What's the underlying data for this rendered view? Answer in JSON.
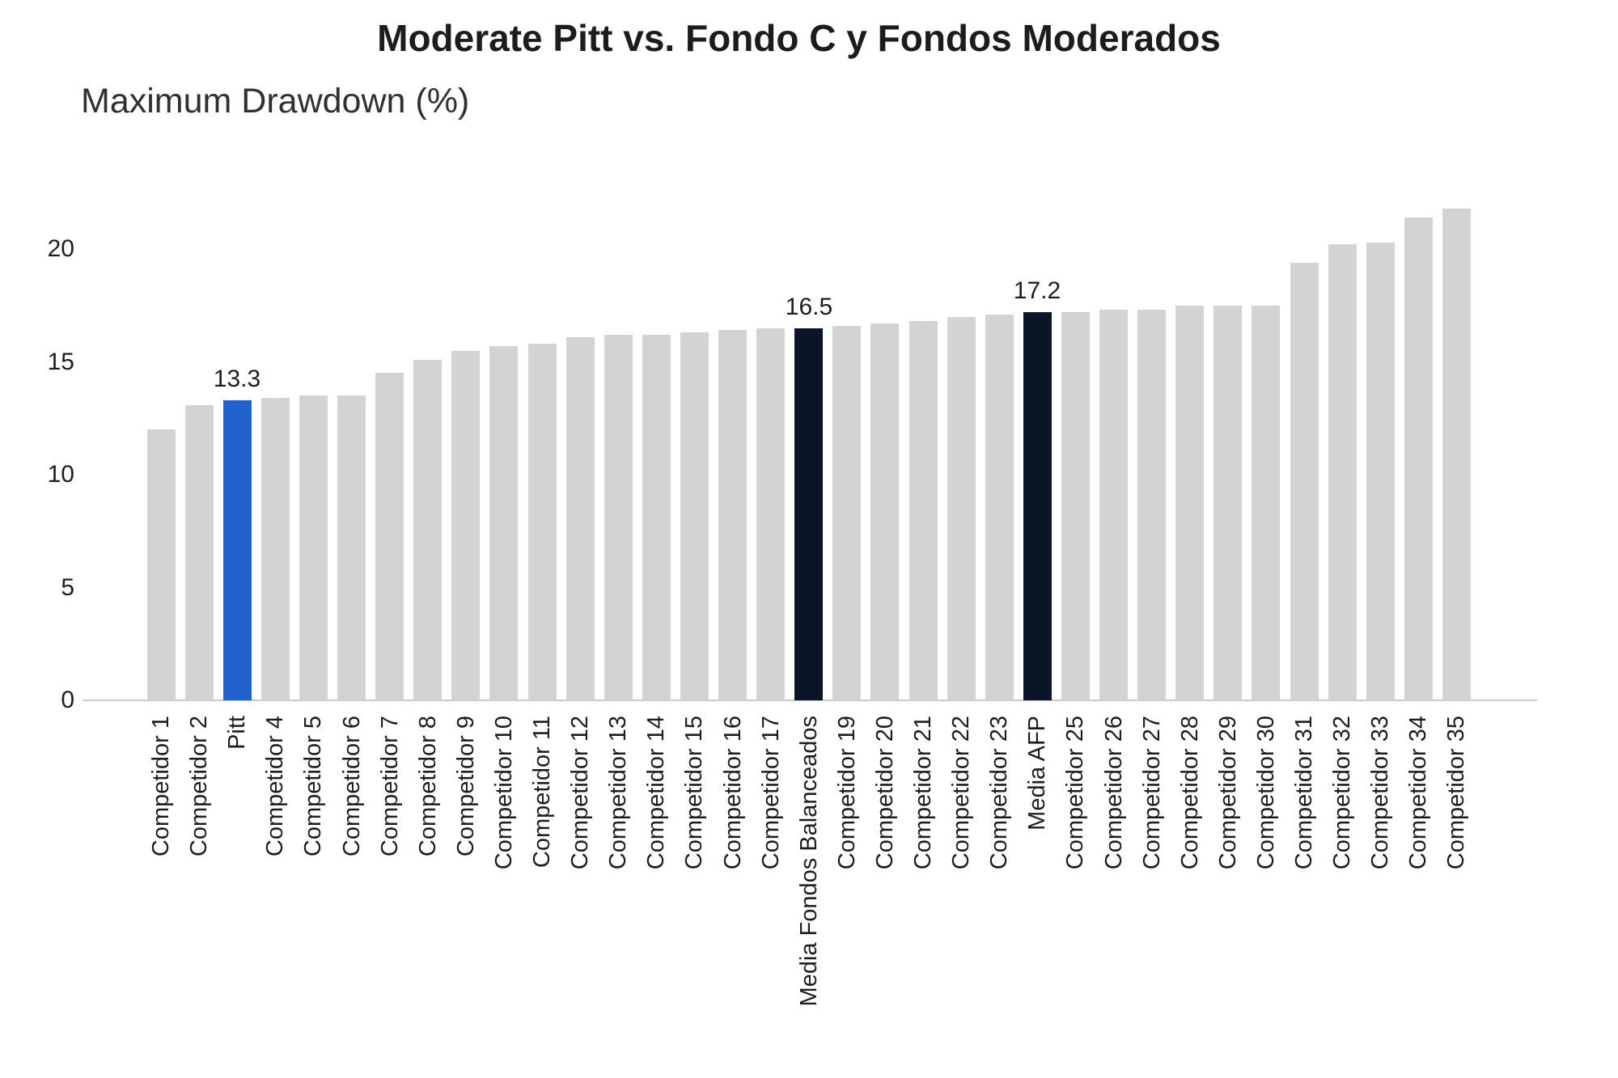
{
  "header": {
    "title": "Moderate Pitt vs. Fondo C y Fondos Moderados",
    "subtitle": "Maximum Drawdown (%)"
  },
  "chart_data": {
    "type": "bar",
    "title": "Moderate Pitt vs. Fondo C y Fondos Moderados",
    "ylabel": "Maximum Drawdown (%)",
    "xlabel": "",
    "categories": [
      "Competidor 1",
      "Competidor 2",
      "Pitt",
      "Competidor 4",
      "Competidor 5",
      "Competidor 6",
      "Competidor 7",
      "Competidor 8",
      "Competidor 9",
      "Competidor 10",
      "Competidor 11",
      "Competidor 12",
      "Competidor 13",
      "Competidor 14",
      "Competidor 15",
      "Competidor 16",
      "Competidor 17",
      "Media Fondos Balanceados",
      "Competidor 19",
      "Competidor 20",
      "Competidor 21",
      "Competidor 22",
      "Competidor 23",
      "Media AFP",
      "Competidor 25",
      "Competidor 26",
      "Competidor 27",
      "Competidor 28",
      "Competidor 29",
      "Competidor 30",
      "Competidor 31",
      "Competidor 32",
      "Competidor 33",
      "Competidor 34",
      "Competidor 35"
    ],
    "values": [
      12.0,
      13.1,
      13.3,
      13.4,
      13.5,
      13.5,
      14.5,
      15.1,
      15.5,
      15.7,
      15.8,
      16.1,
      16.2,
      16.2,
      16.3,
      16.4,
      16.5,
      16.5,
      16.6,
      16.7,
      16.8,
      17.0,
      17.1,
      17.2,
      17.2,
      17.3,
      17.3,
      17.5,
      17.5,
      17.5,
      19.4,
      20.2,
      20.3,
      21.4,
      21.8
    ],
    "highlights": [
      {
        "index": 2,
        "category": "Pitt",
        "value_label": "13.3",
        "color": "#2262CC"
      },
      {
        "index": 17,
        "category": "Media Fondos Balanceados",
        "value_label": "16.5",
        "color": "#0A1628"
      },
      {
        "index": 23,
        "category": "Media AFP",
        "value_label": "17.2",
        "color": "#0A1628"
      }
    ],
    "colors": {
      "bar_default": "#D3D3D3",
      "bar_pitt": "#2262CC",
      "bar_media": "#0A1628",
      "axis_line": "#C9C9C9",
      "text": "#1D1D1D"
    },
    "yticks": [
      0,
      5,
      10,
      15,
      20
    ],
    "ylim": [
      0,
      22.5
    ],
    "grid": false,
    "legend": false,
    "x_tick_rotation_deg": 90
  }
}
